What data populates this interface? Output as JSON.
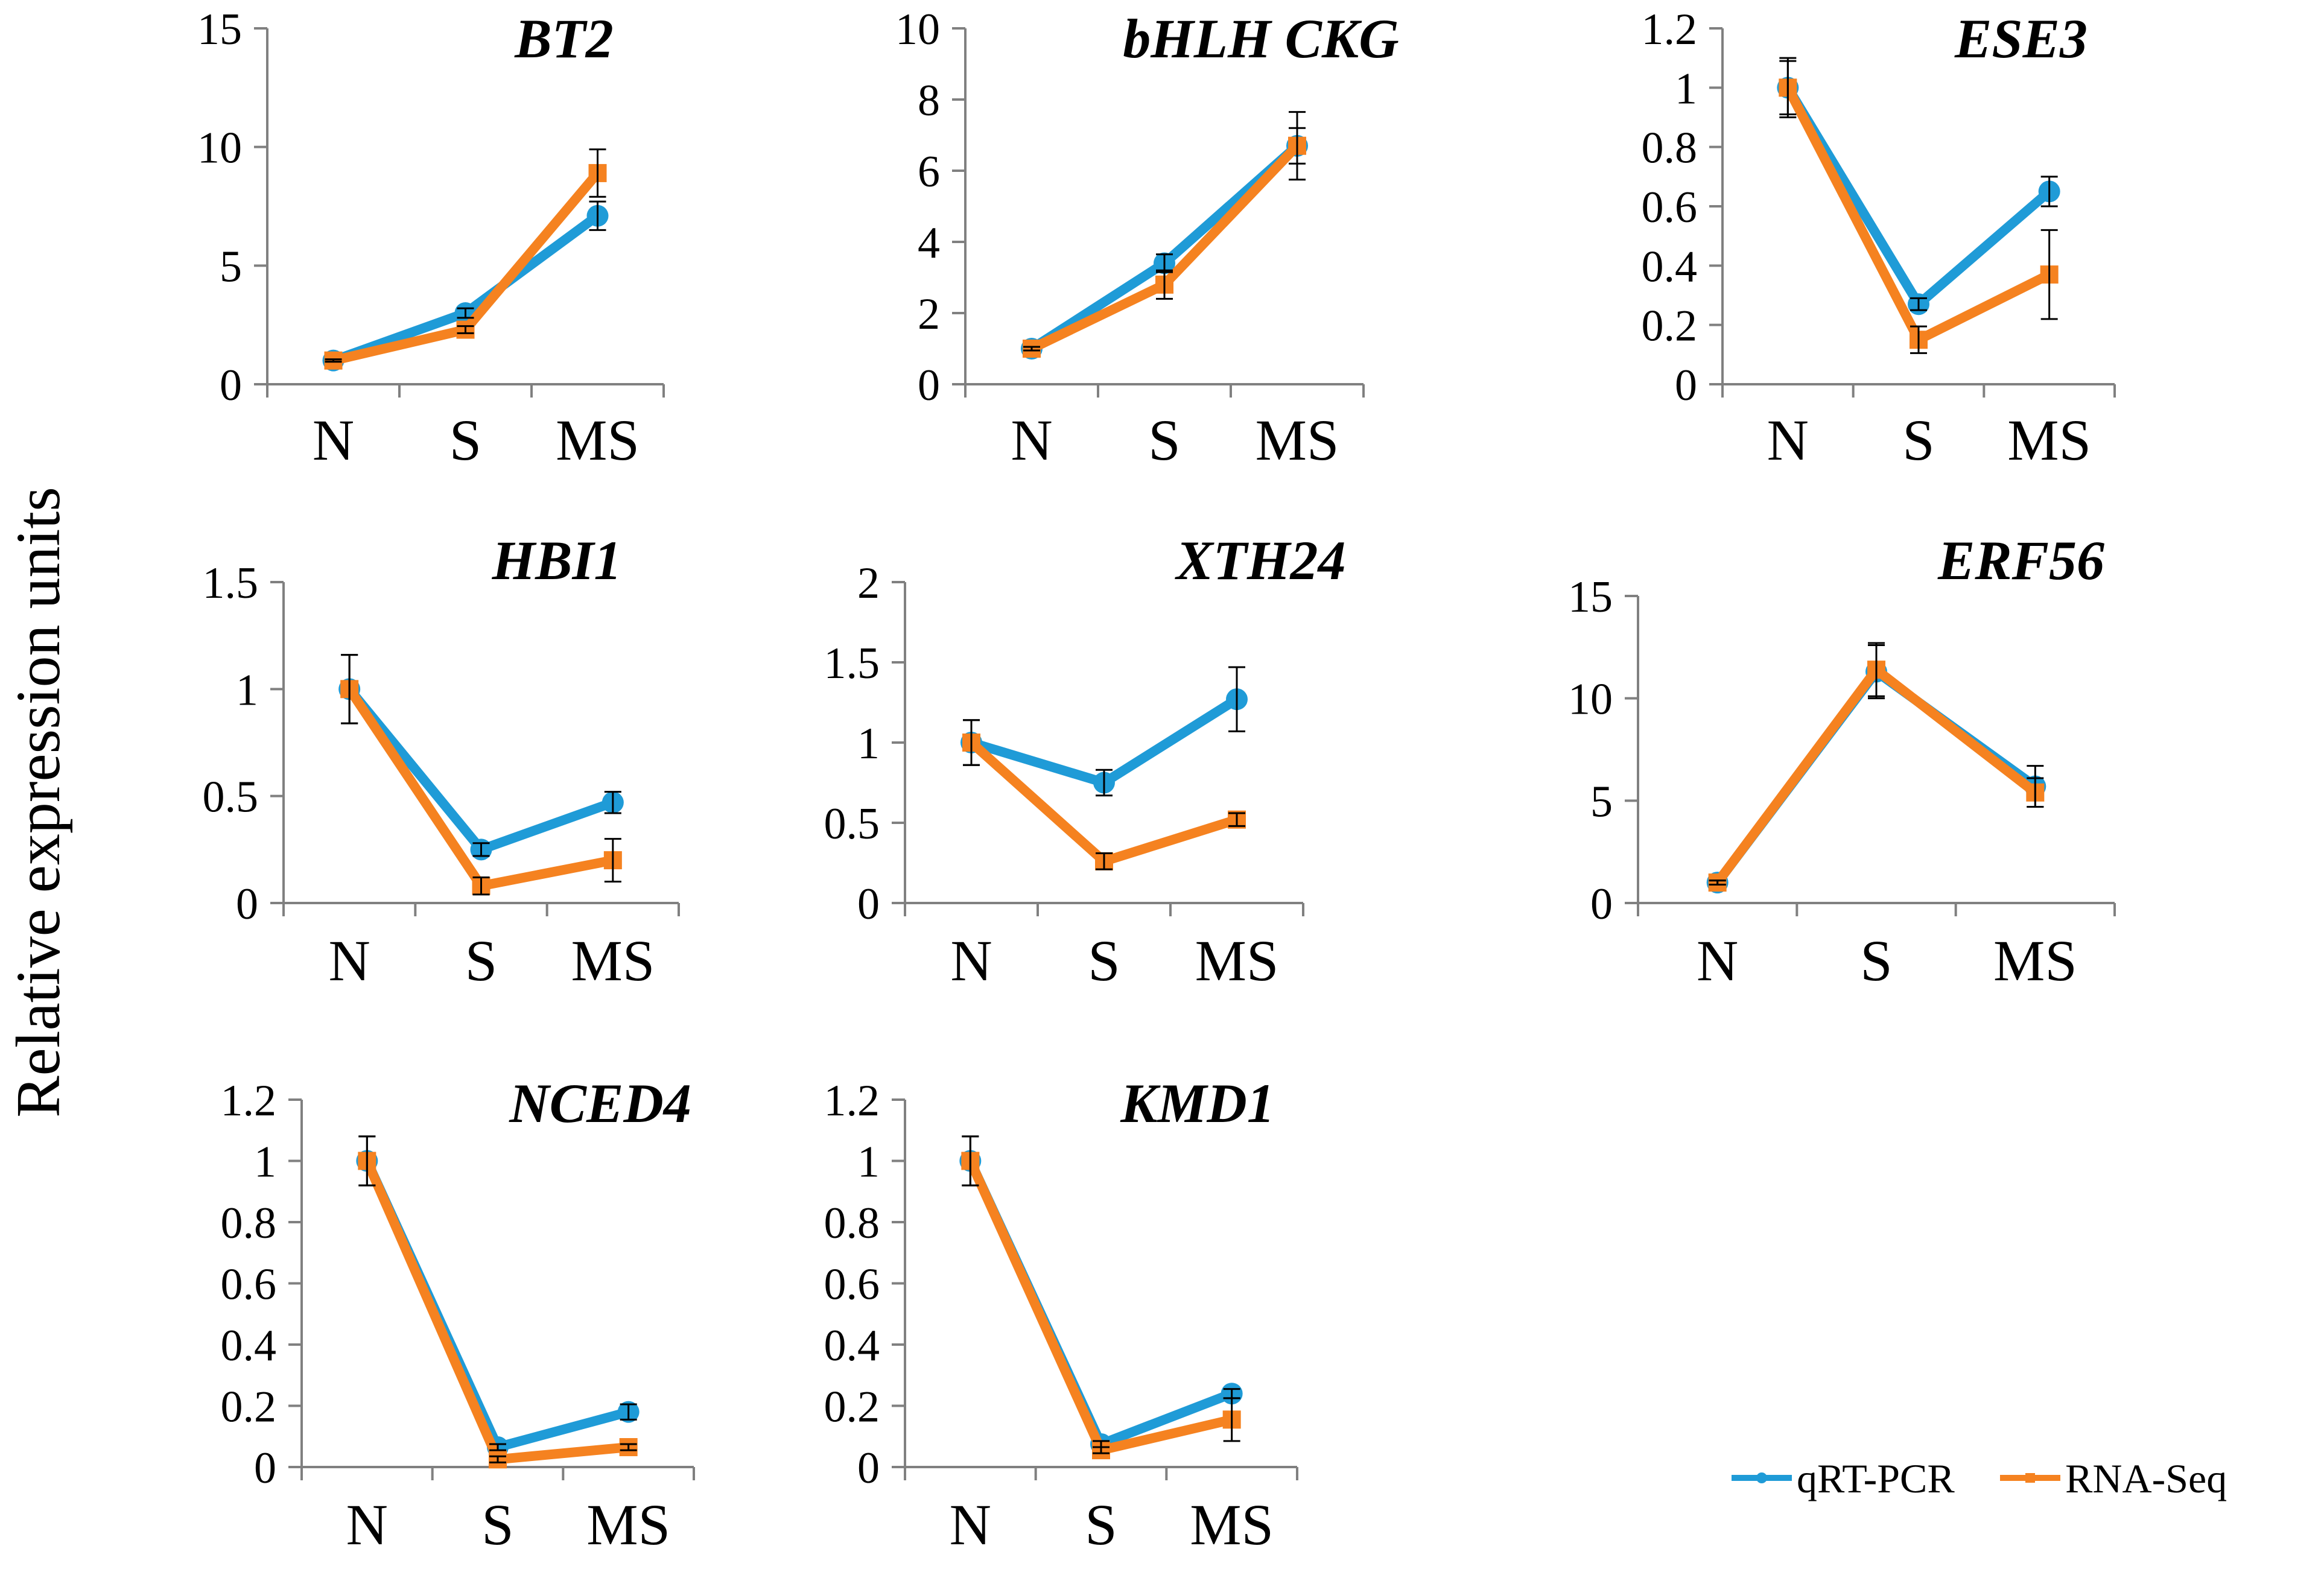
{
  "chart_data": {
    "type": "line",
    "ylabel": "Relative expression units",
    "categories": [
      "N",
      "S",
      "MS"
    ],
    "legend": {
      "placement": "bottom-right",
      "entries": [
        {
          "name": "qRT-PCR",
          "color": "#1f9bd7"
        },
        {
          "name": "RNA-Seq",
          "color": "#f58220"
        }
      ]
    },
    "panels": [
      {
        "title": "BT2",
        "ylim": [
          0,
          15
        ],
        "yticks": [
          "0",
          "5",
          "10",
          "15"
        ],
        "series": [
          {
            "name": "qRT-PCR",
            "values": [
              1,
              3.0,
              7.1
            ],
            "errors": [
              0.05,
              0.2,
              0.6
            ]
          },
          {
            "name": "RNA-Seq",
            "values": [
              1,
              2.3,
              8.9
            ],
            "errors": [
              0.05,
              0.15,
              1.0
            ]
          }
        ]
      },
      {
        "title": "bHLH CKG",
        "ylim": [
          0,
          10
        ],
        "yticks": [
          "0",
          "2",
          "4",
          "6",
          "8",
          "10"
        ],
        "series": [
          {
            "name": "qRT-PCR",
            "values": [
              1,
              3.4,
              6.7
            ],
            "errors": [
              0.05,
              0.25,
              0.5
            ]
          },
          {
            "name": "RNA-Seq",
            "values": [
              1,
              2.8,
              6.7
            ],
            "errors": [
              0.05,
              0.4,
              0.95
            ]
          }
        ]
      },
      {
        "title": "ESE3",
        "ylim": [
          0,
          1.2
        ],
        "yticks": [
          "0",
          "0.2",
          "0.4",
          "0.6",
          "0.8",
          "1",
          "1.2"
        ],
        "series": [
          {
            "name": "qRT-PCR",
            "values": [
              1,
              0.27,
              0.65
            ],
            "errors": [
              0.1,
              0.02,
              0.05
            ]
          },
          {
            "name": "RNA-Seq",
            "values": [
              1,
              0.15,
              0.37
            ],
            "errors": [
              0.09,
              0.045,
              0.15
            ]
          }
        ]
      },
      {
        "title": "HBI1",
        "ylim": [
          0,
          1.5
        ],
        "yticks": [
          "0",
          "0.5",
          "1",
          "1.5"
        ],
        "series": [
          {
            "name": "qRT-PCR",
            "values": [
              1,
              0.25,
              0.47
            ],
            "errors": [
              0.16,
              0.03,
              0.05
            ]
          },
          {
            "name": "RNA-Seq",
            "values": [
              1,
              0.08,
              0.2
            ],
            "errors": [
              0.16,
              0.04,
              0.1
            ]
          }
        ]
      },
      {
        "title": "XTH24",
        "ylim": [
          0,
          2
        ],
        "yticks": [
          "0",
          "0.5",
          "1",
          "1.5",
          "2"
        ],
        "series": [
          {
            "name": "qRT-PCR",
            "values": [
              1,
              0.75,
              1.27
            ],
            "errors": [
              0.14,
              0.08,
              0.2
            ]
          },
          {
            "name": "RNA-Seq",
            "values": [
              1,
              0.26,
              0.52
            ],
            "errors": [
              0.14,
              0.05,
              0.04
            ]
          }
        ]
      },
      {
        "title": "ERF56",
        "ylim": [
          0,
          15
        ],
        "yticks": [
          "0",
          "5",
          "10",
          "15"
        ],
        "series": [
          {
            "name": "qRT-PCR",
            "values": [
              1,
              11.3,
              5.7
            ],
            "errors": [
              0.1,
              1.3,
              1.0
            ]
          },
          {
            "name": "RNA-Seq",
            "values": [
              1,
              11.4,
              5.4
            ],
            "errors": [
              0.1,
              1.3,
              0.7
            ]
          }
        ]
      },
      {
        "title": "NCED4",
        "ylim": [
          0,
          1.2
        ],
        "yticks": [
          "0",
          "0.2",
          "0.4",
          "0.6",
          "0.8",
          "1",
          "1.2"
        ],
        "series": [
          {
            "name": "qRT-PCR",
            "values": [
              1,
              0.065,
              0.18
            ],
            "errors": [
              0.08,
              0.01,
              0.025
            ]
          },
          {
            "name": "RNA-Seq",
            "values": [
              1,
              0.025,
              0.065
            ],
            "errors": [
              0.08,
              0.01,
              0.01
            ]
          }
        ]
      },
      {
        "title": "KMD1",
        "ylim": [
          0,
          1.2
        ],
        "yticks": [
          "0",
          "0.2",
          "0.4",
          "0.6",
          "0.8",
          "1",
          "1.2"
        ],
        "series": [
          {
            "name": "qRT-PCR",
            "values": [
              1,
              0.075,
              0.24
            ],
            "errors": [
              0.08,
              0.01,
              0.015
            ]
          },
          {
            "name": "RNA-Seq",
            "values": [
              1,
              0.055,
              0.155
            ],
            "errors": [
              0.08,
              0.01,
              0.07
            ]
          }
        ]
      }
    ]
  }
}
